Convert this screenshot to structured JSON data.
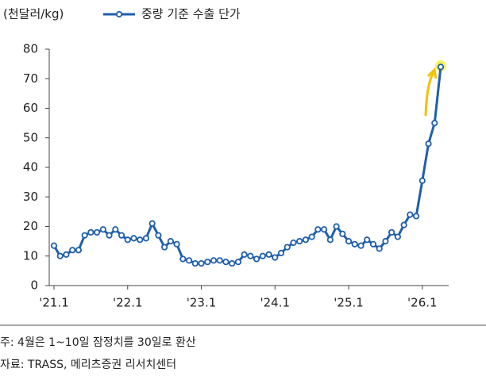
{
  "chart_data": {
    "type": "line",
    "y_axis_label": "(천달러/kg)",
    "categories": [
      "'21.1",
      null,
      null,
      null,
      null,
      null,
      null,
      null,
      null,
      null,
      null,
      null,
      "'22.1",
      null,
      null,
      null,
      null,
      null,
      null,
      null,
      null,
      null,
      null,
      null,
      "'23.1",
      null,
      null,
      null,
      null,
      null,
      null,
      null,
      null,
      null,
      null,
      null,
      "'24.1",
      null,
      null,
      null,
      null,
      null,
      null,
      null,
      null,
      null,
      null,
      null,
      "'25.1",
      null,
      null,
      null,
      null,
      null,
      null,
      null,
      null,
      null,
      null,
      null,
      "'26.1",
      null,
      null,
      null
    ],
    "series": [
      {
        "name": "중량 기준 수출 단가",
        "color": "#1f5fad",
        "values": [
          13.5,
          10,
          10.5,
          12,
          12,
          17,
          18,
          18,
          19,
          17,
          19,
          17,
          15.5,
          16,
          15.5,
          16,
          21,
          17,
          13,
          15,
          14,
          9,
          8.5,
          7.5,
          7.5,
          8,
          8.5,
          8.5,
          8,
          7.5,
          8,
          10.5,
          10,
          9,
          10,
          10.5,
          9.5,
          11,
          13,
          14.5,
          15,
          15.5,
          16.5,
          19,
          19,
          15.5,
          20,
          17.5,
          15,
          14,
          13.5,
          15.5,
          14,
          12.5,
          15,
          18,
          16.5,
          20.5,
          24,
          23.5,
          35.5,
          48,
          55,
          74
        ]
      }
    ],
    "ylim": [
      0,
      80
    ],
    "yticks": [
      0,
      10,
      20,
      30,
      40,
      50,
      60,
      70,
      80
    ],
    "grid": false,
    "notes": [
      "주: 4월은 1~10일 잠정치를 30일로 환산",
      "자료: TRASS, 메리츠증권 리서치센터"
    ]
  }
}
